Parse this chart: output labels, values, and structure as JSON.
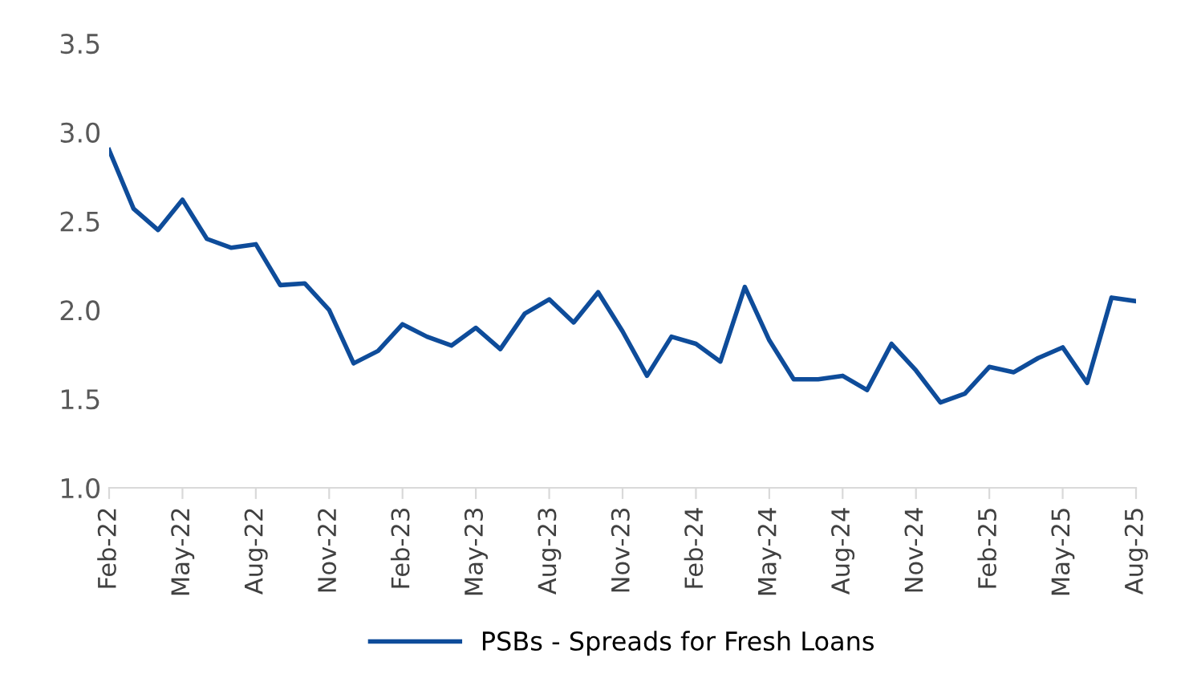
{
  "chart_data": {
    "type": "line",
    "categories": [
      "Feb-22",
      null,
      null,
      "May-22",
      null,
      null,
      "Aug-22",
      null,
      null,
      "Nov-22",
      null,
      null,
      "Feb-23",
      null,
      null,
      "May-23",
      null,
      null,
      "Aug-23",
      null,
      null,
      "Nov-23",
      null,
      null,
      "Feb-24",
      null,
      null,
      "May-24",
      null,
      null,
      "Aug-24",
      null,
      null,
      "Nov-24",
      null,
      null,
      "Feb-25",
      null,
      null,
      "May-25",
      null,
      null,
      "Aug-25"
    ],
    "series": [
      {
        "name": "PSBs - Spreads for Fresh Loans",
        "color": "#0e4c9a",
        "values": [
          2.9,
          2.57,
          2.45,
          2.62,
          2.4,
          2.35,
          2.37,
          2.14,
          2.15,
          2.0,
          1.7,
          1.77,
          1.92,
          1.85,
          1.8,
          1.9,
          1.78,
          1.98,
          2.06,
          1.93,
          2.1,
          1.88,
          1.63,
          1.85,
          1.81,
          1.71,
          2.13,
          1.83,
          1.61,
          1.61,
          1.63,
          1.55,
          1.81,
          1.66,
          1.48,
          1.53,
          1.68,
          1.65,
          1.73,
          1.79,
          1.59,
          2.07,
          2.05
        ]
      }
    ],
    "ylim": [
      1.0,
      3.5
    ],
    "yticks": [
      {
        "value": 1.0,
        "label": "1.0"
      },
      {
        "value": 1.5,
        "label": "1.5"
      },
      {
        "value": 2.0,
        "label": "2.0"
      },
      {
        "value": 2.5,
        "label": "2.5"
      },
      {
        "value": 3.0,
        "label": "3.0"
      },
      {
        "value": 3.5,
        "label": "3.5"
      }
    ],
    "grid": false,
    "legend": "bottom",
    "marker": "none",
    "line_style": "solid"
  }
}
